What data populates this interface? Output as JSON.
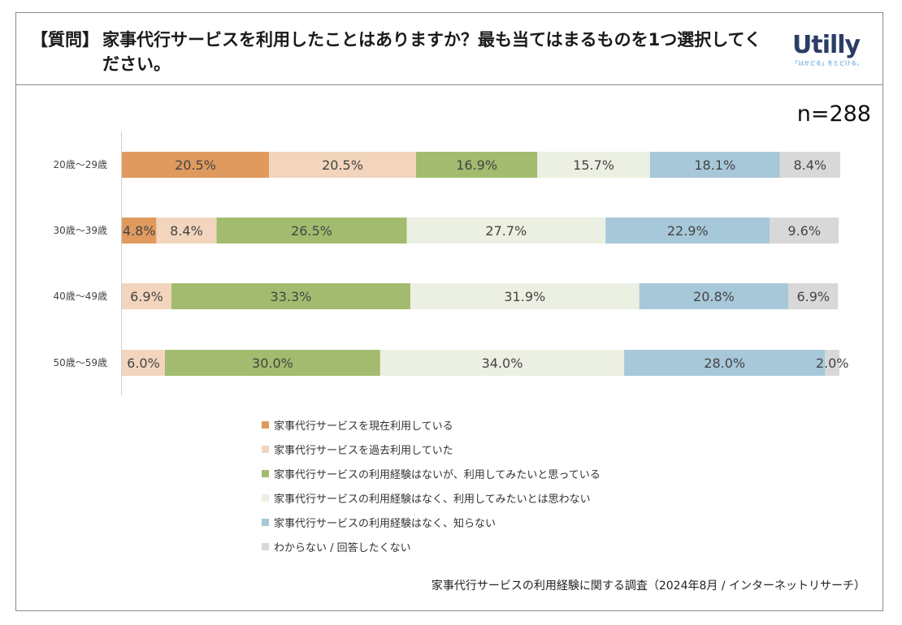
{
  "header": {
    "tag": "【質問】",
    "question": "家事代行サービスを利用したことはありますか？最も当てはまるものを1つ選択してください。",
    "logo_text": "Utilly",
    "logo_tagline": "「はかどる」をとどける。"
  },
  "sample": "n=288",
  "source": "家事代行サービスの利用経験に関する調査（2024年8月 / インターネットリサーチ）",
  "chart_data": {
    "type": "bar",
    "orientation": "horizontal-stacked-100",
    "categories": [
      "20歳～29歳",
      "30歳～39歳",
      "40歳～49歳",
      "50歳～59歳"
    ],
    "series": [
      {
        "name": "家事代行サービスを現在利用している",
        "color": "#e09a5e",
        "values": [
          20.5,
          4.8,
          0.0,
          0.0
        ]
      },
      {
        "name": "家事代行サービスを過去利用していた",
        "color": "#f2d5bc",
        "values": [
          20.5,
          8.4,
          6.9,
          6.0
        ]
      },
      {
        "name": "家事代行サービスの利用経験はないが、利用してみたいと思っている",
        "color": "#a2bb6e",
        "values": [
          16.9,
          26.5,
          33.3,
          30.0
        ]
      },
      {
        "name": "家事代行サービスの利用経験はなく、利用してみたいとは思わない",
        "color": "#ecf0e2",
        "values": [
          15.7,
          27.7,
          31.9,
          34.0
        ]
      },
      {
        "name": "家事代行サービスの利用経験はなく、知らない",
        "color": "#a7c8d9",
        "values": [
          18.1,
          22.9,
          20.8,
          28.0
        ]
      },
      {
        "name": "わからない / 回答したくない",
        "color": "#d8d8d8",
        "values": [
          8.4,
          9.6,
          6.9,
          2.0
        ]
      }
    ],
    "labels": [
      [
        "20.5%",
        "20.5%",
        "16.9%",
        "15.7%",
        "18.1%",
        "8.4%"
      ],
      [
        "4.8%",
        "8.4%",
        "26.5%",
        "27.7%",
        "22.9%",
        "9.6%"
      ],
      [
        "",
        "6.9%",
        "33.3%",
        "31.9%",
        "20.8%",
        "6.9%"
      ],
      [
        "",
        "6.0%",
        "30.0%",
        "34.0%",
        "28.0%",
        "2.0%"
      ]
    ],
    "xlim": [
      0,
      100
    ],
    "legend": "bottom"
  }
}
